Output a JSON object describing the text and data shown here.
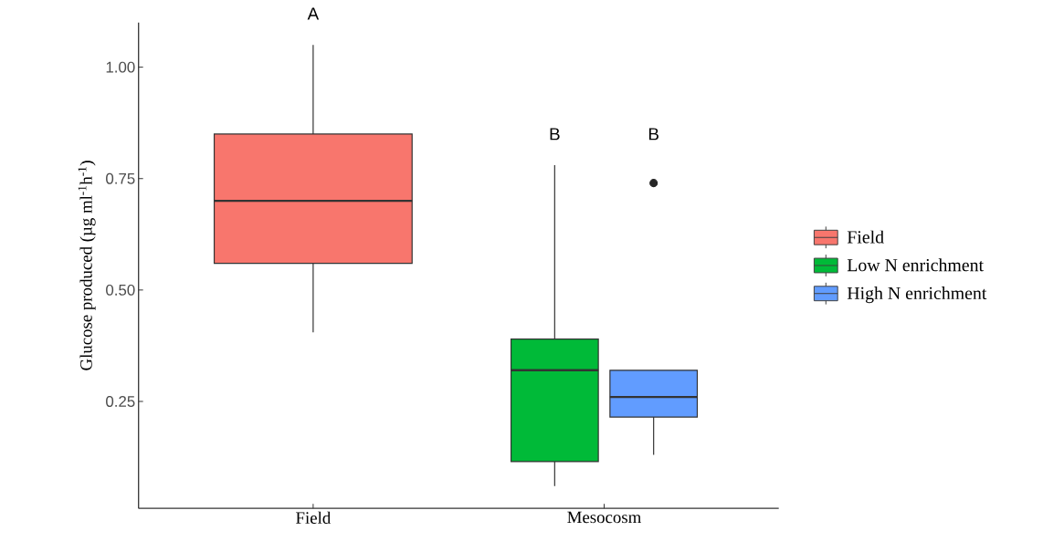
{
  "chart_data": {
    "type": "box",
    "categories": [
      "Field",
      "Mesocosm"
    ],
    "ylabel": "Glucose produced (µg ml$^{-1}$h$^{-1}$)",
    "ylim": [
      0.01,
      1.1
    ],
    "yticks": [
      {
        "value": 0.25,
        "label": "0.25"
      },
      {
        "value": 0.5,
        "label": "0.50"
      },
      {
        "value": 0.75,
        "label": "0.75"
      },
      {
        "value": 1.0,
        "label": "1.00"
      }
    ],
    "legend": "right",
    "series": [
      {
        "name": "Field",
        "color": "#f8766d",
        "boxes": [
          {
            "low": 0.405,
            "q1": 0.56,
            "median": 0.7,
            "q3": 0.85,
            "high": 1.05
          },
          null
        ]
      },
      {
        "name": "Low N enrichment",
        "color": "#00ba38",
        "boxes": [
          null,
          {
            "low": 0.06,
            "q1": 0.115,
            "median": 0.32,
            "q3": 0.39,
            "high": 0.78
          }
        ]
      },
      {
        "name": "High N enrichment",
        "color": "#619cff",
        "boxes": [
          null,
          {
            "low": 0.13,
            "q1": 0.215,
            "median": 0.26,
            "q3": 0.32,
            "high": 0.32,
            "outliers": [
              0.74
            ]
          }
        ]
      }
    ],
    "annotations": [
      "A",
      "B",
      "B"
    ]
  }
}
